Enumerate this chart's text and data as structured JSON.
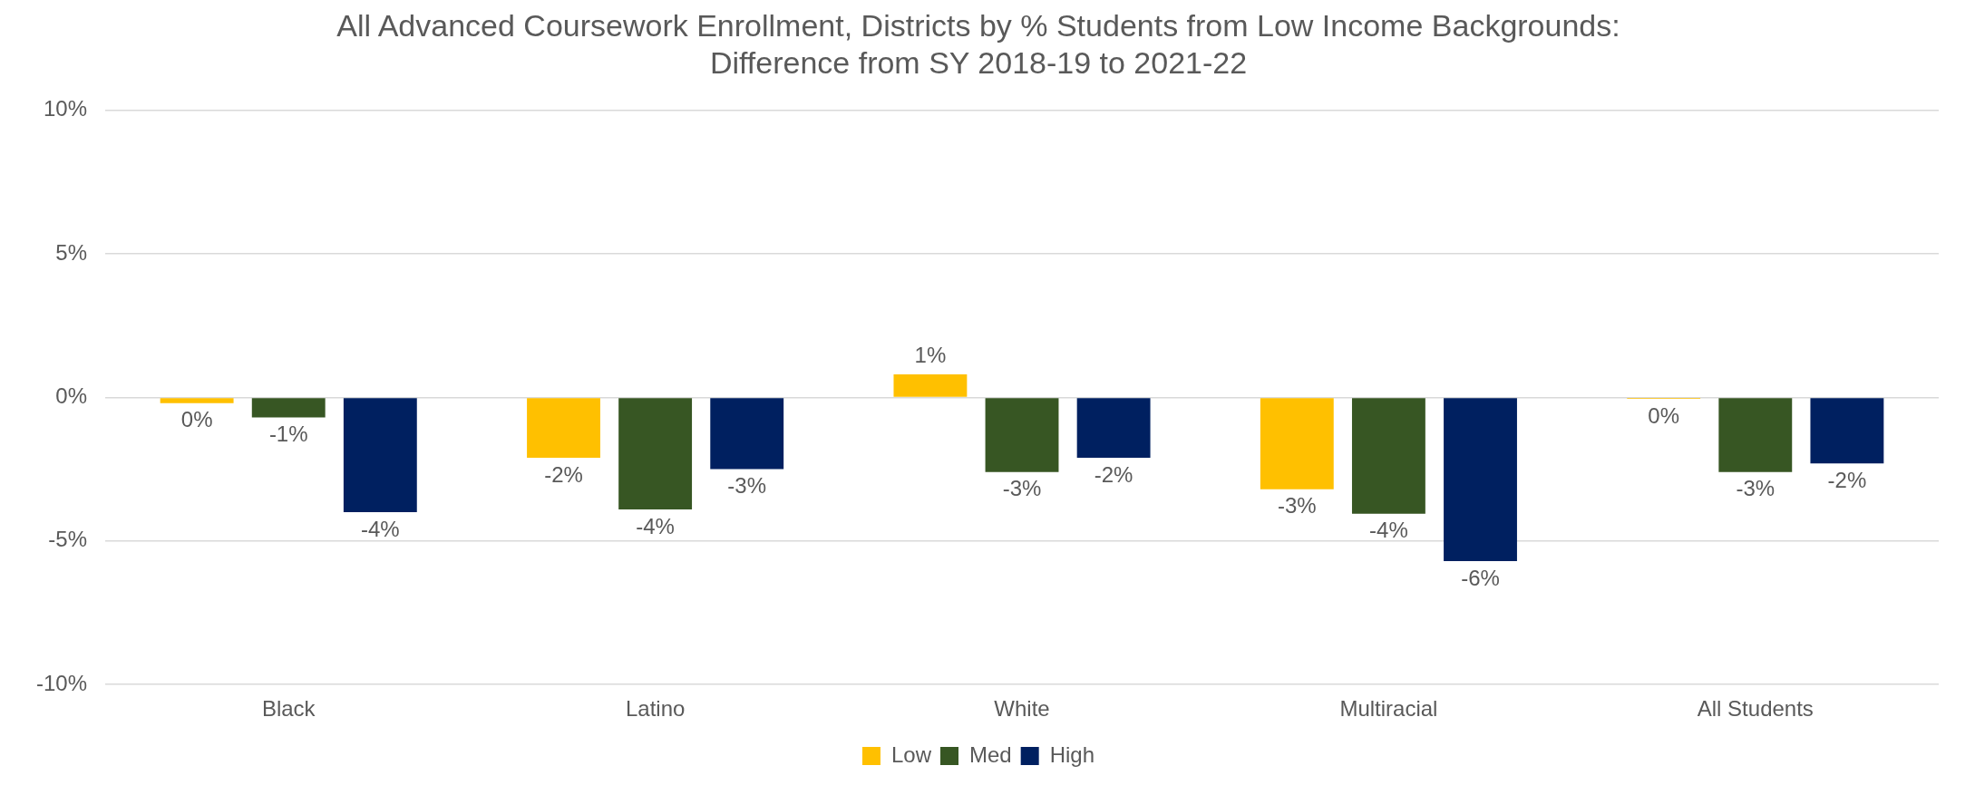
{
  "chart_data": {
    "type": "bar",
    "title": "All Advanced Coursework Enrollment, Districts by % Students from Low Income Backgrounds:\nDifference from SY 2018-19 to 2021-22",
    "categories": [
      "Black",
      "Latino",
      "White",
      "Multiracial",
      "All Students"
    ],
    "series": [
      {
        "name": "Low",
        "color": "#ffc000",
        "values": [
          -0.2,
          -2.1,
          0.8,
          -3.2,
          -0.05
        ],
        "value_labels": [
          "0%",
          "-2%",
          "1%",
          "-3%",
          "0%"
        ]
      },
      {
        "name": "Med",
        "color": "#375623",
        "values": [
          -0.7,
          -3.9,
          -2.6,
          -4.05,
          -2.6
        ],
        "value_labels": [
          "-1%",
          "-4%",
          "-3%",
          "-4%",
          "-3%"
        ]
      },
      {
        "name": "High",
        "color": "#002060",
        "values": [
          -4.0,
          -2.5,
          -2.1,
          -5.7,
          -2.3
        ],
        "value_labels": [
          "-4%",
          "-3%",
          "-2%",
          "-6%",
          "-2%"
        ]
      }
    ],
    "ylim": [
      -10,
      10
    ],
    "yticks": [
      {
        "value": -10,
        "label": "-10%"
      },
      {
        "value": -5,
        "label": "-5%"
      },
      {
        "value": 0,
        "label": "0%"
      },
      {
        "value": 5,
        "label": "5%"
      },
      {
        "value": 10,
        "label": "10%"
      }
    ],
    "grid": "y",
    "legend": "bottom"
  }
}
